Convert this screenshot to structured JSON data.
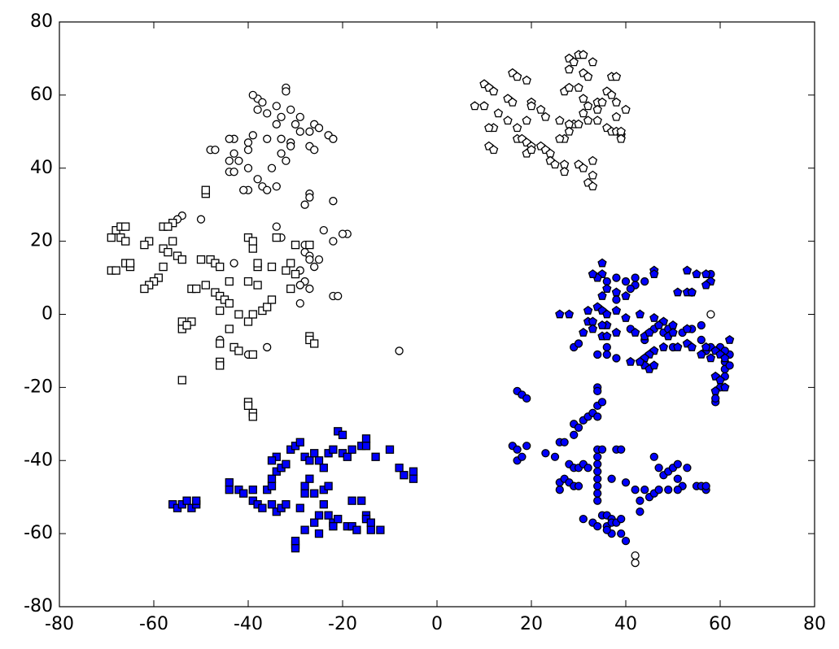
{
  "chart_data": {
    "type": "scatter",
    "xlim": [
      -80,
      80
    ],
    "ylim": [
      -80,
      80
    ],
    "xticks": [
      -80,
      -60,
      -40,
      -20,
      0,
      20,
      40,
      60,
      80
    ],
    "yticks": [
      -80,
      -60,
      -40,
      -20,
      0,
      20,
      40,
      60,
      80
    ],
    "series": [
      {
        "color": "#ffffff",
        "marker": "circle",
        "x": [
          -32,
          -32,
          -38,
          -39,
          -37,
          -34,
          -38,
          -36,
          -31,
          -33,
          -29,
          -30,
          -34,
          -26,
          -27,
          -25,
          -29,
          -23,
          -22,
          -33,
          -36,
          -39,
          -43,
          -44,
          -40,
          -31,
          -31,
          -27,
          -26,
          -48,
          -47,
          -40,
          -43,
          -42,
          -44,
          -32,
          -33,
          -35,
          -40,
          -44,
          -43,
          -38,
          -37,
          -40,
          -36,
          -41,
          -34,
          -27,
          -27,
          -22,
          -28,
          -54,
          -55,
          -50,
          -34,
          -33,
          -24,
          -19,
          -20,
          -22,
          -28,
          -28,
          -27,
          -25,
          -27,
          -43,
          -26,
          -29,
          -28,
          -29,
          -27,
          -22,
          -21,
          -29,
          -46,
          -40,
          -36,
          -8,
          58,
          42,
          42
        ],
        "y": [
          62,
          61,
          59,
          60,
          58,
          57,
          56,
          55,
          56,
          54,
          54,
          52,
          52,
          52,
          50,
          51,
          50,
          49,
          48,
          48,
          48,
          49,
          48,
          48,
          47,
          47,
          46,
          46,
          45,
          45,
          45,
          45,
          44,
          42,
          42,
          42,
          44,
          40,
          40,
          39,
          39,
          37,
          35,
          34,
          34,
          34,
          35,
          33,
          32,
          31,
          30,
          27,
          26,
          26,
          24,
          21,
          23,
          22,
          22,
          20,
          19,
          17,
          16,
          15,
          15,
          14,
          13,
          12,
          9,
          8,
          7,
          5,
          5,
          3,
          -7,
          -11,
          -9,
          -10,
          0,
          -66,
          -68
        ]
      },
      {
        "color": "#ffffff",
        "marker": "square",
        "x": [
          -69,
          -68,
          -67,
          -66,
          -67,
          -66,
          -69,
          -68,
          -66,
          -65,
          -65,
          -61,
          -62,
          -58,
          -56,
          -57,
          -56,
          -58,
          -57,
          -55,
          -54,
          -58,
          -59,
          -60,
          -61,
          -62,
          -52,
          -51,
          -50,
          -48,
          -47,
          -46,
          -49,
          -47,
          -46,
          -45,
          -44,
          -46,
          -42,
          -40,
          -39,
          -37,
          -36,
          -35,
          -44,
          -40,
          -38,
          -38,
          -38,
          -35,
          -31,
          -30,
          -31,
          -32,
          -30,
          -27,
          -40,
          -39,
          -39,
          -34,
          -49,
          -49,
          -54,
          -54,
          -52,
          -53,
          -44,
          -46,
          -43,
          -42,
          -46,
          -46,
          -39,
          -27,
          -27,
          -26,
          -54,
          -40,
          -40,
          -39,
          -39
        ],
        "y": [
          21,
          23,
          24,
          24,
          21,
          20,
          12,
          12,
          14,
          13,
          14,
          20,
          19,
          24,
          25,
          24,
          20,
          18,
          17,
          16,
          15,
          13,
          10,
          9,
          8,
          7,
          7,
          7,
          15,
          15,
          14,
          13,
          8,
          6,
          5,
          4,
          3,
          1,
          0,
          -2,
          0,
          1,
          2,
          4,
          9,
          9,
          8,
          13,
          14,
          13,
          7,
          11,
          14,
          12,
          19,
          19,
          21,
          20,
          18,
          21,
          33,
          34,
          -2,
          -4,
          -2,
          -3,
          -4,
          -8,
          -9,
          -10,
          -13,
          -14,
          -11,
          -6,
          -7,
          -8,
          -18,
          -24,
          -25,
          -27,
          -28
        ]
      },
      {
        "color": "#ffffff",
        "marker": "pentagon",
        "x": [
          10,
          10,
          11,
          12,
          8,
          13,
          12,
          11,
          11,
          12,
          15,
          15,
          16,
          16,
          17,
          19,
          20,
          20,
          19,
          17,
          17,
          18,
          19,
          20,
          19,
          20,
          22,
          23,
          24,
          24,
          25,
          27,
          27,
          26,
          27,
          28,
          28,
          29,
          30,
          31,
          31,
          32,
          33,
          30,
          31,
          28,
          32,
          34,
          35,
          34,
          31,
          34,
          32,
          29,
          30,
          28,
          28,
          27,
          26,
          30,
          31,
          33,
          33,
          32,
          33,
          36,
          37,
          37,
          38,
          38,
          38,
          36,
          37,
          38,
          39,
          39,
          39,
          40,
          22,
          23
        ],
        "y": [
          57,
          63,
          62,
          61,
          57,
          55,
          51,
          51,
          46,
          45,
          53,
          59,
          58,
          66,
          65,
          64,
          58,
          57,
          53,
          51,
          48,
          48,
          47,
          46,
          44,
          45,
          46,
          45,
          44,
          42,
          41,
          41,
          39,
          53,
          61,
          67,
          70,
          69,
          71,
          71,
          66,
          65,
          69,
          62,
          59,
          62,
          57,
          58,
          58,
          56,
          55,
          53,
          53,
          52,
          52,
          52,
          50,
          48,
          48,
          41,
          40,
          42,
          38,
          36,
          35,
          61,
          60,
          65,
          65,
          58,
          54,
          51,
          50,
          50,
          49,
          50,
          48,
          56,
          56,
          54
        ]
      },
      {
        "color": "#0000ff",
        "marker": "circle",
        "x": [
          17,
          18,
          19,
          16,
          17,
          19,
          17,
          18,
          23,
          25,
          26,
          27,
          26,
          26,
          27,
          28,
          29,
          30,
          28,
          29,
          30,
          31,
          32,
          29,
          30,
          29,
          31,
          32,
          33,
          34,
          34,
          34,
          34,
          35,
          34,
          34,
          34,
          34,
          34,
          34,
          34,
          34,
          35,
          31,
          33,
          34,
          36,
          36,
          37,
          37,
          38,
          39,
          39,
          40,
          37,
          36,
          35,
          38,
          39,
          37,
          40,
          42,
          44,
          43,
          43,
          45,
          46,
          47,
          49,
          48,
          49,
          50,
          51,
          53,
          51,
          52,
          51,
          55,
          56,
          57,
          57,
          46,
          47,
          59,
          59,
          60,
          61,
          61,
          61,
          62,
          62,
          60,
          61,
          29,
          30,
          36,
          36,
          38,
          34,
          41,
          44,
          46,
          48,
          49,
          50,
          52,
          54,
          56,
          56,
          57,
          58,
          38,
          40,
          42,
          44,
          42,
          54,
          58,
          38,
          41,
          36
        ],
        "y": [
          -21,
          -22,
          -23,
          -36,
          -37,
          -36,
          -40,
          -39,
          -38,
          -39,
          -35,
          -35,
          -46,
          -48,
          -45,
          -46,
          -47,
          -47,
          -41,
          -42,
          -42,
          -41,
          -42,
          -30,
          -31,
          -33,
          -29,
          -28,
          -27,
          -28,
          -20,
          -21,
          -25,
          -24,
          -37,
          -39,
          -41,
          -43,
          -45,
          -47,
          -49,
          -51,
          -55,
          -56,
          -57,
          -58,
          -58,
          -55,
          -56,
          -57,
          -57,
          -56,
          -60,
          -62,
          -60,
          -59,
          -37,
          -37,
          -37,
          -45,
          -46,
          -48,
          -48,
          -51,
          -54,
          -50,
          -49,
          -48,
          -48,
          -44,
          -43,
          -42,
          -41,
          -42,
          -45,
          -47,
          -48,
          -47,
          -47,
          -48,
          -47,
          -39,
          -42,
          -24,
          -23,
          -20,
          -15,
          -17,
          -13,
          -14,
          -11,
          -9,
          -10,
          -9,
          -8,
          -9,
          -11,
          -12,
          -11,
          -4,
          -7,
          -4,
          -5,
          -4,
          -9,
          -5,
          -4,
          -3,
          -7,
          -10,
          -9,
          10,
          9,
          8,
          9,
          10,
          6,
          11,
          4,
          7,
          9
        ]
      },
      {
        "color": "#0000ff",
        "marker": "square",
        "x": [
          -56,
          -55,
          -54,
          -53,
          -52,
          -51,
          -51,
          -44,
          -44,
          -42,
          -41,
          -39,
          -39,
          -38,
          -37,
          -35,
          -34,
          -33,
          -32,
          -36,
          -35,
          -35,
          -34,
          -33,
          -32,
          -34,
          -35,
          -31,
          -30,
          -29,
          -28,
          -27,
          -26,
          -25,
          -24,
          -23,
          -22,
          -21,
          -20,
          -20,
          -19,
          -18,
          -16,
          -15,
          -15,
          -13,
          -10,
          -8,
          -7,
          -5,
          -5,
          -27,
          -28,
          -28,
          -26,
          -24,
          -23,
          -24,
          -25,
          -23,
          -22,
          -21,
          -22,
          -19,
          -18,
          -17,
          -15,
          -15,
          -14,
          -14,
          -12,
          -16,
          -18,
          -29,
          -30,
          -30,
          -30,
          -26,
          -25,
          -28
        ],
        "y": [
          -52,
          -53,
          -52,
          -51,
          -53,
          -52,
          -51,
          -46,
          -48,
          -48,
          -49,
          -48,
          -51,
          -52,
          -53,
          -52,
          -54,
          -53,
          -52,
          -48,
          -47,
          -45,
          -43,
          -42,
          -41,
          -39,
          -40,
          -37,
          -36,
          -35,
          -39,
          -40,
          -38,
          -40,
          -42,
          -38,
          -37,
          -32,
          -33,
          -38,
          -39,
          -37,
          -36,
          -34,
          -36,
          -39,
          -37,
          -42,
          -44,
          -43,
          -45,
          -45,
          -47,
          -49,
          -49,
          -48,
          -47,
          -52,
          -55,
          -55,
          -57,
          -56,
          -58,
          -58,
          -58,
          -59,
          -55,
          -56,
          -57,
          -59,
          -59,
          -51,
          -51,
          -53,
          -63,
          -64,
          -62,
          -57,
          -60,
          -59
        ]
      },
      {
        "color": "#0000ff",
        "marker": "pentagon",
        "x": [
          35,
          35,
          34,
          33,
          36,
          35,
          38,
          40,
          46,
          46,
          53,
          55,
          57,
          58,
          57,
          53,
          54,
          51,
          26,
          28,
          32,
          34,
          35,
          36,
          38,
          40,
          43,
          46,
          48,
          32,
          33,
          31,
          33,
          35,
          36,
          38,
          42,
          44,
          45,
          46,
          45,
          44,
          44,
          45,
          46,
          48,
          49,
          50,
          51,
          53,
          54,
          56,
          57,
          58,
          59,
          60,
          61,
          59,
          60,
          61,
          59,
          62,
          43,
          41,
          36,
          35,
          53,
          47,
          50
        ],
        "y": [
          14,
          11,
          10,
          11,
          7,
          5,
          6,
          5,
          12,
          11,
          12,
          11,
          11,
          9,
          8,
          6,
          6,
          6,
          0,
          0,
          1,
          2,
          1,
          0,
          1,
          -1,
          0,
          -1,
          -2,
          -2,
          -2,
          -5,
          -4,
          -6,
          -6,
          -5,
          -5,
          -6,
          -5,
          -10,
          -11,
          -12,
          -14,
          -15,
          -14,
          -9,
          -6,
          -5,
          -9,
          -8,
          -9,
          -11,
          -9,
          -12,
          -10,
          -11,
          -12,
          -17,
          -18,
          -20,
          -21,
          -7,
          -13,
          -13,
          -3,
          -3,
          -4,
          -3,
          -3
        ]
      }
    ]
  }
}
